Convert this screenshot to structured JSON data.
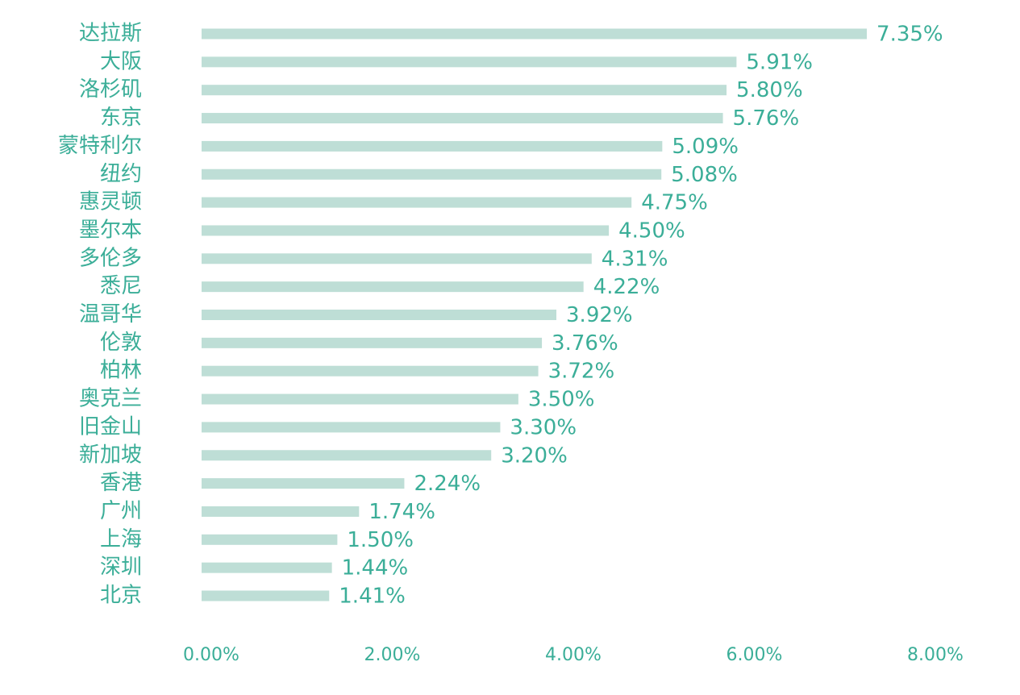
{
  "chart_data": {
    "type": "bar",
    "orientation": "horizontal",
    "categories": [
      "达拉斯",
      "大阪",
      "洛杉矶",
      "东京",
      "蒙特利尔",
      "纽约",
      "惠灵顿",
      "墨尔本",
      "多伦多",
      "悉尼",
      "温哥华",
      "伦敦",
      "柏林",
      "奥克兰",
      "旧金山",
      "新加坡",
      "香港",
      "广州",
      "上海",
      "深圳",
      "北京"
    ],
    "values": [
      7.35,
      5.91,
      5.8,
      5.76,
      5.09,
      5.08,
      4.75,
      4.5,
      4.31,
      4.22,
      3.92,
      3.76,
      3.72,
      3.5,
      3.3,
      3.2,
      2.24,
      1.74,
      1.5,
      1.44,
      1.41
    ],
    "value_labels": [
      "7.35%",
      "5.91%",
      "5.80%",
      "5.76%",
      "5.09%",
      "5.08%",
      "4.75%",
      "4.50%",
      "4.31%",
      "4.22%",
      "3.92%",
      "3.76%",
      "3.72%",
      "3.50%",
      "3.30%",
      "3.20%",
      "2.24%",
      "1.74%",
      "1.50%",
      "1.44%",
      "1.41%"
    ],
    "xlim": [
      0,
      8
    ],
    "x_ticks": [
      0,
      2,
      4,
      6,
      8
    ],
    "x_tick_labels": [
      "0.00%",
      "2.00%",
      "4.00%",
      "6.00%",
      "8.00%"
    ],
    "title": "",
    "xlabel": "",
    "ylabel": "",
    "grid": false,
    "legend": "none",
    "bar_color": "#BEDED6",
    "text_color": "#3BAE98"
  }
}
